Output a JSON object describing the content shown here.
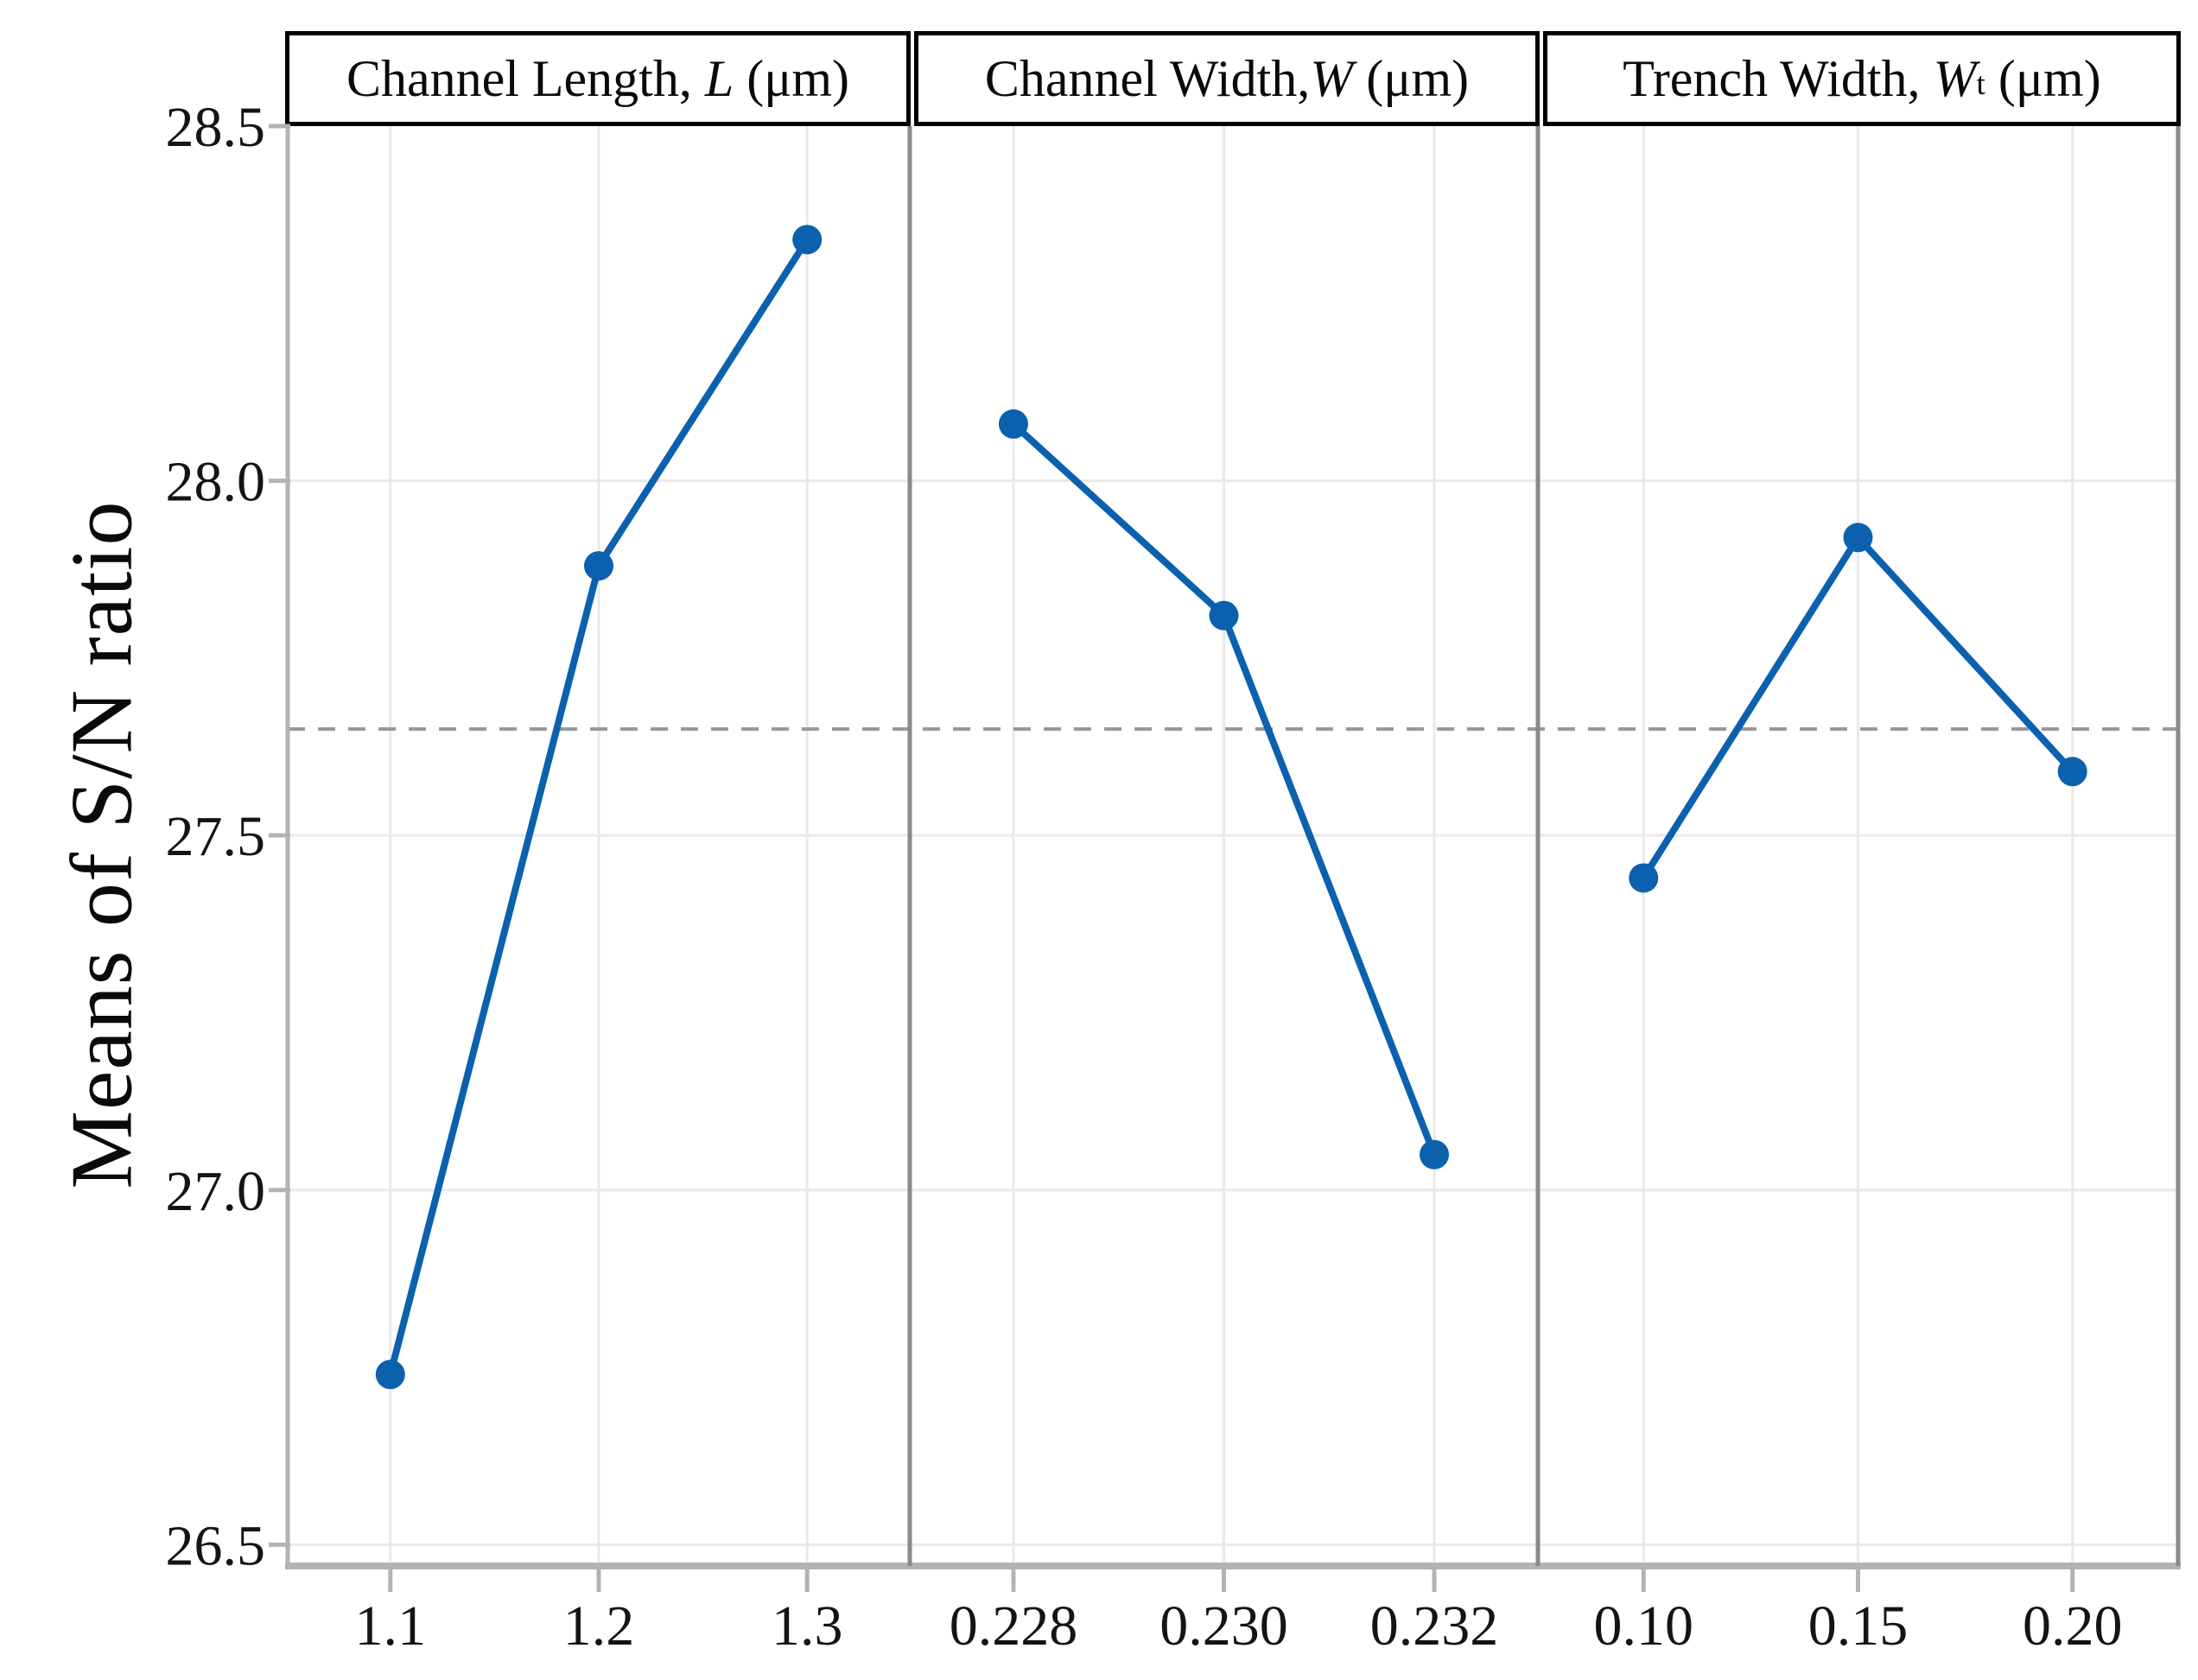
{
  "figure": {
    "type_note": "main effects plot, three shared-axis panels"
  },
  "chart_data": {
    "type": "line",
    "title": "",
    "ylabel": "Means of S/N ratio",
    "xlabel": "",
    "ylim": [
      26.47,
      28.5
    ],
    "grid": true,
    "legend": "none",
    "reference_line_y": 27.65,
    "yticks": [
      {
        "label": "28.5",
        "value": 28.5
      },
      {
        "label": "28.0",
        "value": 28.0
      },
      {
        "label": "27.5",
        "value": 27.5
      },
      {
        "label": "27.0",
        "value": 27.0
      },
      {
        "label": "26.5",
        "value": 26.5
      }
    ],
    "panels": [
      {
        "header": "Channel Length, L (μm)",
        "header_rich": {
          "prefix": "Channel Length, ",
          "var": "L",
          "sub": "",
          "suffix": " (μm)"
        },
        "categories": [
          "1.1",
          "1.2",
          "1.3"
        ],
        "values": [
          26.74,
          27.88,
          28.34
        ]
      },
      {
        "header": "Channel Width, W (μm)",
        "header_rich": {
          "prefix": "Channel Width,",
          "var": "W",
          "sub": "",
          "suffix": " (μm)"
        },
        "categories": [
          "0.228",
          "0.230",
          "0.232"
        ],
        "values": [
          28.08,
          27.81,
          27.05
        ]
      },
      {
        "header": "Trench Width, Wt (μm)",
        "header_rich": {
          "prefix": "Trench Width, ",
          "var": "W",
          "sub": "t",
          "suffix": " (μm)"
        },
        "categories": [
          "0.10",
          "0.15",
          "0.20"
        ],
        "values": [
          27.44,
          27.92,
          27.59
        ]
      }
    ],
    "colors": {
      "series": "#0b61ae",
      "reference_line": "#999999",
      "gridline": "#e9e9e9",
      "axis": "#b3b3b3",
      "panel_separator": "#8a8a8a",
      "header_border": "#000000",
      "text": "#141414"
    }
  }
}
